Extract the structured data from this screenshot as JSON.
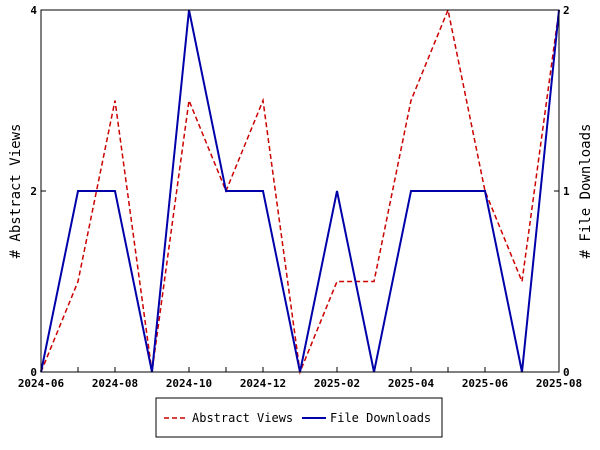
{
  "chart_data": {
    "type": "line",
    "x": [
      "2024-06",
      "2024-07",
      "2024-08",
      "2024-09",
      "2024-10",
      "2024-11",
      "2024-12",
      "2025-01",
      "2025-02",
      "2025-03",
      "2025-04",
      "2025-05",
      "2025-06",
      "2025-07",
      "2025-08"
    ],
    "x_tick_labels": [
      "2024-06",
      "2024-08",
      "2024-10",
      "2024-12",
      "2025-02",
      "2025-04",
      "2025-06",
      "2025-08"
    ],
    "series": [
      {
        "name": "Abstract Views",
        "axis": "left",
        "color": "#cc0000",
        "style": "dashed",
        "values": [
          0,
          1,
          3,
          0,
          3,
          2,
          3,
          0,
          1,
          1,
          3,
          4,
          2,
          1,
          4
        ]
      },
      {
        "name": "File Downloads",
        "axis": "right",
        "color": "#0000aa",
        "style": "solid",
        "values": [
          0,
          1,
          1,
          0,
          2,
          1,
          1,
          0,
          1,
          0,
          1,
          1,
          1,
          0,
          2
        ]
      }
    ],
    "ylabel_left": "# Abstract Views",
    "ylabel_right": "# File Downloads",
    "ylim_left": [
      0,
      4
    ],
    "ylim_right": [
      0,
      2
    ],
    "yticks_left": [
      "0",
      "2",
      "4"
    ],
    "yticks_right": [
      "0",
      "1",
      "2"
    ],
    "legend_position": "bottom-center",
    "grid": false
  }
}
